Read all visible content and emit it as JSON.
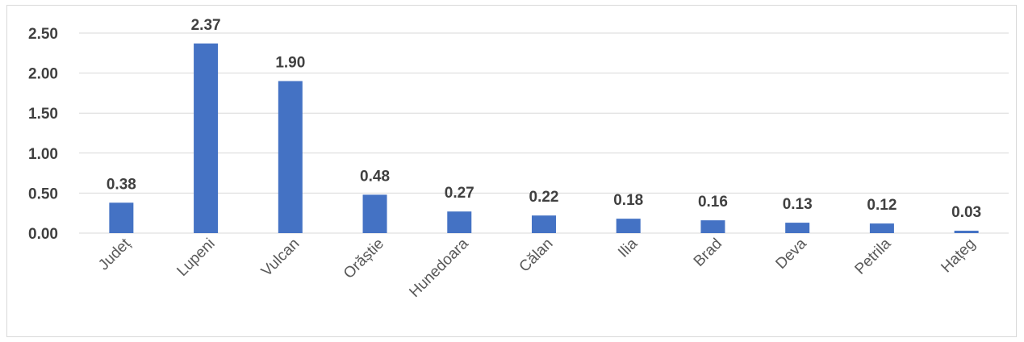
{
  "chart_data": {
    "type": "bar",
    "categories": [
      "Județ",
      "Lupeni",
      "Vulcan",
      "Orăștie",
      "Hunedoara",
      "Călan",
      "Ilia",
      "Brad",
      "Deva",
      "Petrila",
      "Hațeg"
    ],
    "values": [
      0.38,
      2.37,
      1.9,
      0.48,
      0.27,
      0.22,
      0.18,
      0.16,
      0.13,
      0.12,
      0.03
    ],
    "value_labels": [
      "0.38",
      "2.37",
      "1.90",
      "0.48",
      "0.27",
      "0.22",
      "0.18",
      "0.16",
      "0.13",
      "0.12",
      "0.03"
    ],
    "yticks": [
      "0.00",
      "0.50",
      "1.00",
      "1.50",
      "2.00",
      "2.50"
    ],
    "ylim": [
      0,
      2.5
    ],
    "grid": true,
    "legend": "none",
    "title": "",
    "xlabel": "",
    "ylabel": "",
    "colors": {
      "bar": "#4472c4",
      "grid": "#d9d9d9",
      "text": "#404040"
    }
  }
}
